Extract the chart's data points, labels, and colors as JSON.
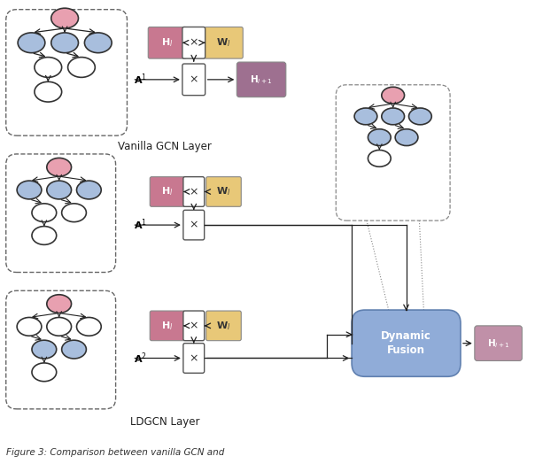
{
  "fig_width": 6.04,
  "fig_height": 5.24,
  "dpi": 100,
  "bg_color": "#ffffff",
  "colors": {
    "pink_node": "#e8a0b0",
    "blue_node": "#a8bedd",
    "white_node": "#ffffff",
    "H_box": "#c87890",
    "W_box": "#e8c878",
    "H_next_box_vanilla": "#9e7090",
    "H_next_box_ldgcn": "#c090a8",
    "multiply_box": "#ffffff",
    "dynamic_fusion_box": "#90acd8",
    "dynamic_fusion_ec": "#6080b0",
    "node_ec": "#333333",
    "arrow_color": "#222222",
    "dashed_color": "#666666"
  },
  "vanilla_label": "Vanilla GCN Layer",
  "ldgcn_label": "LDGCN Layer",
  "caption": "Figure 3: Comparison between vanilla GCN and"
}
